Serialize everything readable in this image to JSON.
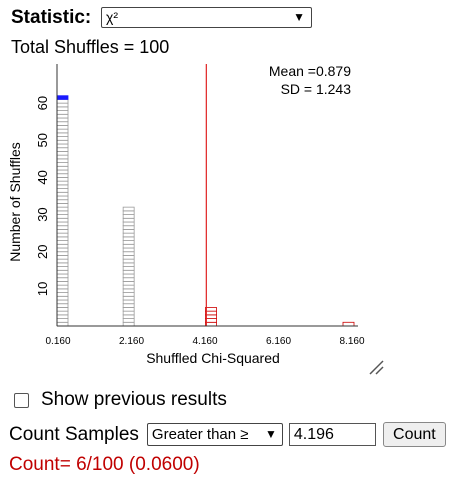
{
  "statistic": {
    "label": "Statistic:",
    "selected": "χ²"
  },
  "total_shuffles": "Total Shuffles = 100",
  "chart_data": {
    "type": "bar",
    "xlabel": "Shuffled Chi-Squared",
    "ylabel": "Number of Shuffles",
    "x_ticks": [
      "0.160",
      "2.160",
      "4.160",
      "6.160",
      "8.160"
    ],
    "x_range": [
      0.16,
      8.16
    ],
    "y_ticks": [
      "10",
      "20",
      "30",
      "40",
      "50",
      "60"
    ],
    "ylim": [
      0,
      70
    ],
    "mean_text": "Mean =0.879",
    "sd_text": "SD = 1.243",
    "cutoff": 4.196,
    "bars": [
      {
        "x": 0.16,
        "count": 62,
        "color": "#9a9a9a",
        "top_color": "#1a1aff"
      },
      {
        "x": 1.96,
        "count": 32,
        "color": "#9a9a9a"
      },
      {
        "x": 4.2,
        "count": 5,
        "color": "#cc0000"
      },
      {
        "x": 8.16,
        "count": 1,
        "color": "#cc0000"
      }
    ],
    "colors": {
      "cutoff_line": "#e02020",
      "axis": "#333333"
    }
  },
  "show_previous": {
    "label": "Show previous results",
    "checked": false
  },
  "count": {
    "label": "Count Samples",
    "comparison": "Greater than ≥",
    "value": "4.196",
    "button": "Count"
  },
  "result": "Count= 6/100 (0.0600)"
}
